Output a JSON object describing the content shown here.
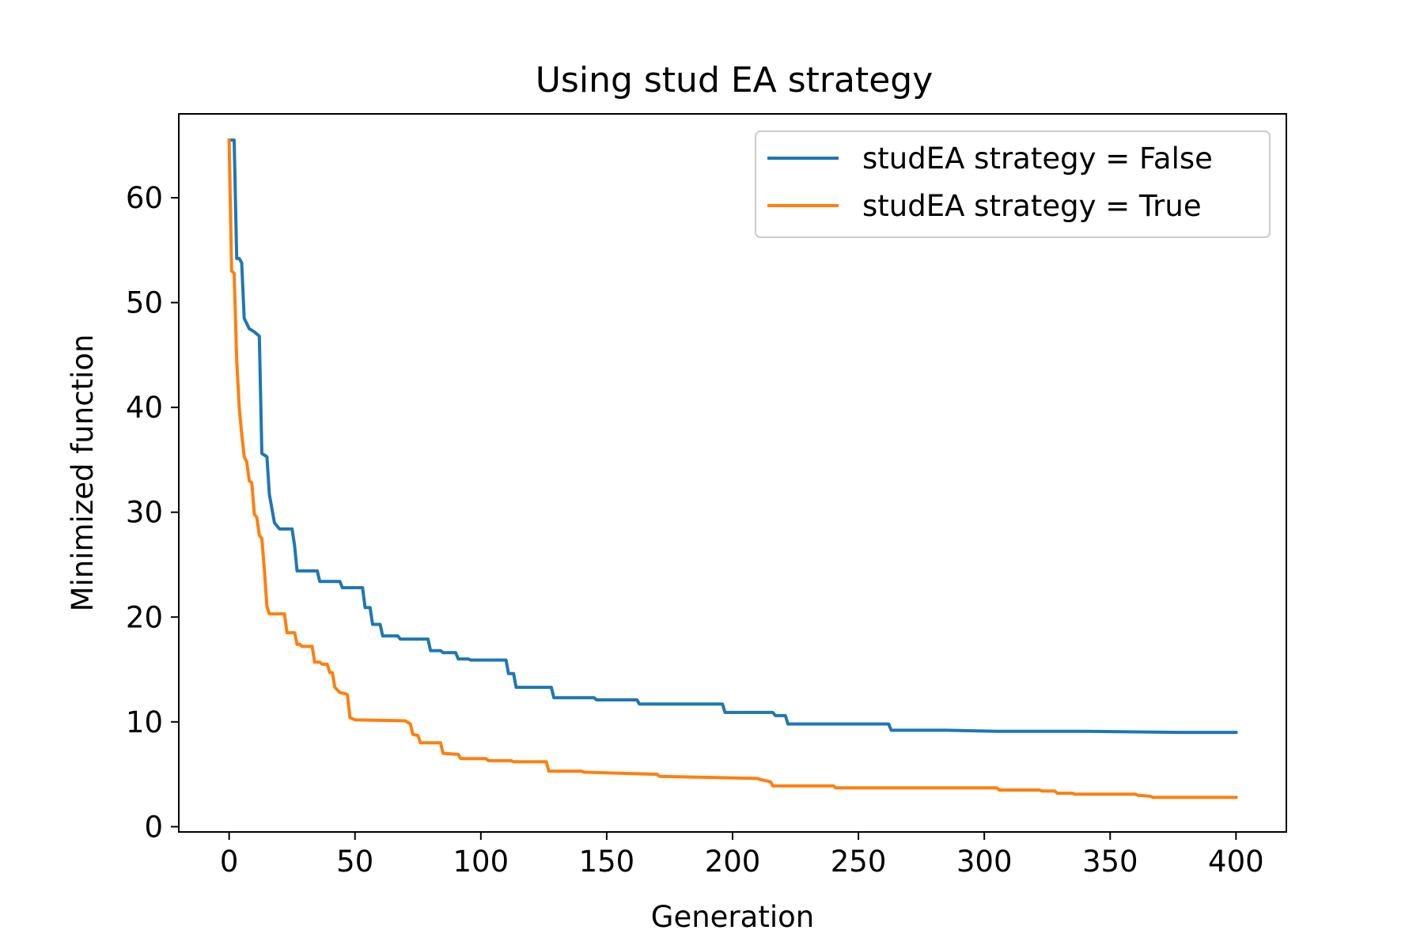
{
  "chart_data": {
    "type": "line",
    "title": "Using stud EA strategy",
    "xlabel": "Generation",
    "ylabel": "Minimized function",
    "xlim": [
      -20,
      420
    ],
    "ylim": [
      -0.5,
      68
    ],
    "xticks": [
      0,
      50,
      100,
      150,
      200,
      250,
      300,
      350,
      400
    ],
    "yticks": [
      0,
      10,
      20,
      30,
      40,
      50,
      60
    ],
    "grid": false,
    "legend_position": "top-right",
    "series": [
      {
        "name": "studEA strategy = False",
        "color": "#1f77b4",
        "x": [
          1,
          2,
          3,
          4,
          5,
          6,
          8,
          10,
          12,
          13,
          15,
          16,
          18,
          20,
          25,
          26,
          27,
          35,
          36,
          44,
          45,
          53,
          54,
          56,
          57,
          60,
          61,
          67,
          68,
          79,
          80,
          84,
          85,
          90,
          91,
          95,
          96,
          110,
          111,
          113,
          114,
          128,
          129,
          145,
          146,
          162,
          163,
          196,
          197,
          216,
          217,
          221,
          222,
          262,
          263,
          285,
          305,
          340,
          378,
          400
        ],
        "y": [
          65.5,
          65.5,
          54.2,
          54.2,
          53.8,
          48.5,
          47.5,
          47.2,
          46.8,
          35.6,
          35.3,
          31.7,
          29.0,
          28.4,
          28.4,
          26.8,
          24.4,
          24.4,
          23.4,
          23.4,
          22.8,
          22.8,
          20.9,
          20.9,
          19.3,
          19.3,
          18.2,
          18.2,
          17.9,
          17.9,
          16.8,
          16.8,
          16.6,
          16.6,
          16.0,
          16.0,
          15.9,
          15.9,
          14.6,
          14.6,
          13.3,
          13.3,
          12.3,
          12.3,
          12.1,
          12.1,
          11.7,
          11.7,
          10.9,
          10.9,
          10.6,
          10.6,
          9.8,
          9.8,
          9.2,
          9.2,
          9.1,
          9.1,
          9.0,
          9.0
        ]
      },
      {
        "name": "studEA strategy = True",
        "color": "#ff7f0e",
        "x": [
          0,
          1,
          2,
          3,
          4,
          5,
          6,
          7,
          8,
          9,
          10,
          11,
          12,
          13,
          14,
          15,
          16,
          17,
          22,
          23,
          26,
          27,
          28,
          29,
          30,
          33,
          34,
          36,
          37,
          39,
          40,
          41,
          42,
          44,
          46,
          47,
          48,
          50,
          70,
          72,
          73,
          75,
          76,
          84,
          85,
          91,
          92,
          102,
          103,
          112,
          113,
          126,
          127,
          140,
          141,
          170,
          171,
          210,
          211,
          215,
          216,
          240,
          241,
          305,
          306,
          322,
          323,
          328,
          329,
          335,
          336,
          360,
          361,
          366,
          367,
          400
        ],
        "y": [
          65.5,
          53.0,
          52.8,
          44.5,
          40.0,
          37.5,
          35.3,
          34.8,
          33.0,
          32.8,
          29.8,
          29.5,
          27.8,
          27.5,
          24.5,
          21.0,
          20.3,
          20.3,
          20.3,
          18.5,
          18.5,
          17.4,
          17.4,
          17.2,
          17.2,
          17.2,
          15.7,
          15.7,
          15.5,
          15.5,
          14.7,
          14.7,
          13.3,
          12.8,
          12.7,
          12.6,
          10.4,
          10.2,
          10.1,
          9.8,
          8.8,
          8.7,
          8.0,
          8.0,
          7.0,
          6.9,
          6.5,
          6.5,
          6.3,
          6.3,
          6.2,
          6.2,
          5.3,
          5.3,
          5.2,
          5.0,
          4.8,
          4.6,
          4.5,
          4.3,
          3.9,
          3.9,
          3.7,
          3.7,
          3.5,
          3.5,
          3.4,
          3.4,
          3.2,
          3.2,
          3.1,
          3.1,
          3.0,
          2.9,
          2.8,
          2.8
        ]
      }
    ]
  }
}
